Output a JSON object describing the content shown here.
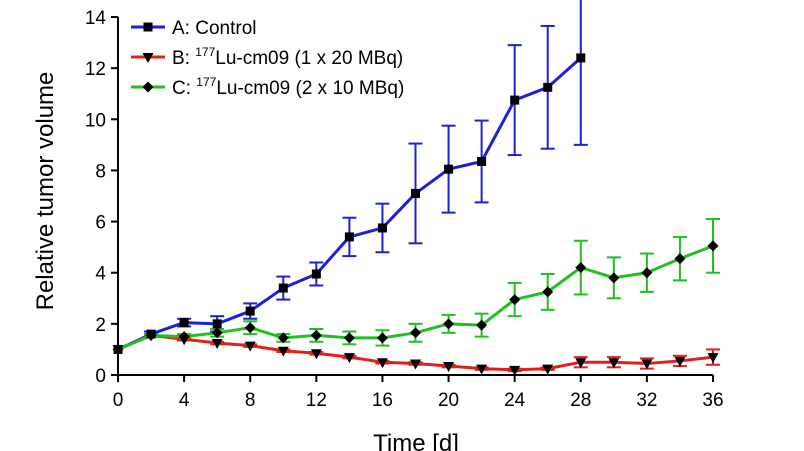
{
  "chart_data": {
    "type": "line",
    "xlabel": "Time [d]",
    "ylabel": "Relative tumor volume",
    "xlim": [
      0,
      36
    ],
    "ylim": [
      0,
      14
    ],
    "xticks": [
      0,
      4,
      8,
      12,
      16,
      20,
      24,
      28,
      32,
      36
    ],
    "yticks": [
      0,
      2,
      4,
      6,
      8,
      10,
      12,
      14
    ],
    "legend_position": "top-left",
    "series": [
      {
        "name": "A: Control",
        "legend_prefix": "A: ",
        "legend_sup": "",
        "legend_rest": "Control",
        "color": "#1f1fd6",
        "marker": "square",
        "x": [
          0,
          2,
          4,
          6,
          8,
          10,
          12,
          14,
          16,
          18,
          20,
          22,
          24,
          26,
          28
        ],
        "y": [
          1.0,
          1.6,
          2.05,
          2.0,
          2.5,
          3.4,
          3.95,
          5.4,
          5.75,
          7.1,
          8.05,
          8.35,
          10.75,
          11.25,
          12.4
        ],
        "err": [
          0.0,
          0.1,
          0.15,
          0.3,
          0.3,
          0.45,
          0.45,
          0.75,
          0.95,
          1.95,
          1.7,
          1.6,
          2.15,
          2.4,
          3.4
        ]
      },
      {
        "name": "B: 177Lu-cm09 (1 x 20 MBq)",
        "legend_prefix": "B: ",
        "legend_sup": "177",
        "legend_rest": "Lu-cm09 (1 x 20 MBq)",
        "color": "#e0201b",
        "marker": "triangle-down",
        "x": [
          0,
          2,
          4,
          6,
          8,
          10,
          12,
          14,
          16,
          18,
          20,
          22,
          24,
          26,
          28,
          30,
          32,
          34,
          36
        ],
        "y": [
          1.0,
          1.55,
          1.4,
          1.25,
          1.15,
          0.95,
          0.85,
          0.7,
          0.5,
          0.45,
          0.35,
          0.25,
          0.2,
          0.25,
          0.5,
          0.5,
          0.45,
          0.55,
          0.7
        ],
        "err": [
          0.0,
          0.05,
          0.05,
          0.05,
          0.05,
          0.05,
          0.05,
          0.05,
          0.05,
          0.05,
          0.05,
          0.05,
          0.05,
          0.05,
          0.2,
          0.2,
          0.2,
          0.2,
          0.3
        ]
      },
      {
        "name": "C: 177Lu-cm09 (2 x 10 MBq)",
        "legend_prefix": "C: ",
        "legend_sup": "177",
        "legend_rest": "Lu-cm09 (2 x 10 MBq)",
        "color": "#21c021",
        "marker": "diamond",
        "x": [
          0,
          2,
          4,
          6,
          8,
          10,
          12,
          14,
          16,
          18,
          20,
          22,
          24,
          26,
          28,
          30,
          32,
          34,
          36
        ],
        "y": [
          1.0,
          1.55,
          1.5,
          1.65,
          1.85,
          1.45,
          1.55,
          1.45,
          1.45,
          1.65,
          2.0,
          1.95,
          2.95,
          3.25,
          4.2,
          3.8,
          4.0,
          4.55,
          5.05
        ],
        "err": [
          0.0,
          0.05,
          0.1,
          0.15,
          0.25,
          0.15,
          0.25,
          0.25,
          0.3,
          0.35,
          0.35,
          0.45,
          0.65,
          0.7,
          1.05,
          0.8,
          0.75,
          0.85,
          1.05
        ]
      }
    ]
  }
}
